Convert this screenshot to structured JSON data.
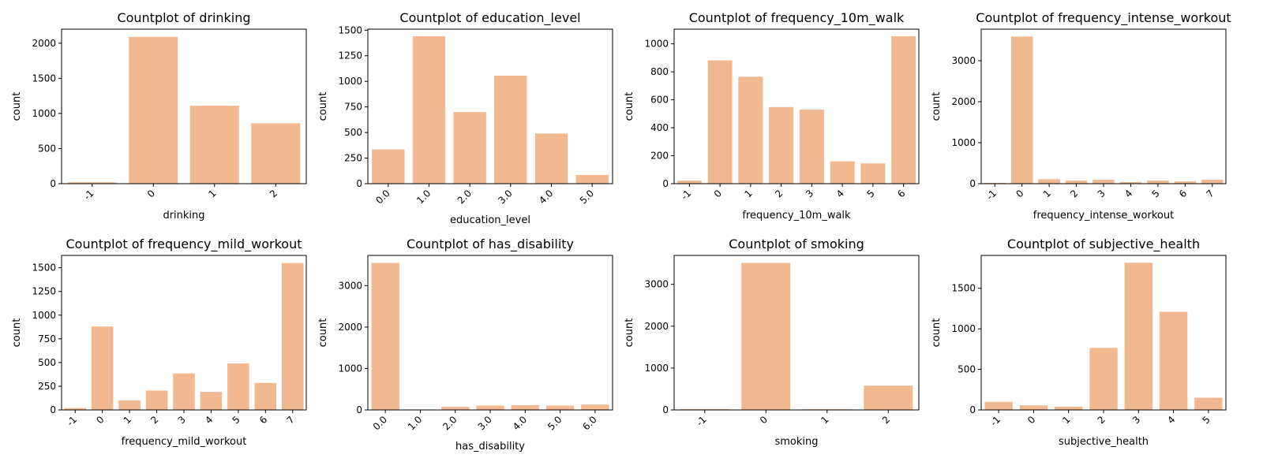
{
  "bar_color": "#f2b88f",
  "chart_data": [
    {
      "type": "bar",
      "title": "Countplot of drinking",
      "xlabel": "drinking",
      "ylabel": "count",
      "categories": [
        "-1",
        "0",
        "1",
        "2"
      ],
      "values": [
        20,
        2090,
        1110,
        860
      ],
      "ylim": [
        0,
        2200
      ],
      "yticks": [
        0,
        500,
        1000,
        1500,
        2000
      ],
      "grid": false,
      "legend": "none"
    },
    {
      "type": "bar",
      "title": "Countplot of education_level",
      "xlabel": "education_level",
      "ylabel": "count",
      "categories": [
        "0.0",
        "1.0",
        "2.0",
        "3.0",
        "4.0",
        "5.0"
      ],
      "values": [
        335,
        1440,
        700,
        1055,
        490,
        85
      ],
      "ylim": [
        0,
        1510
      ],
      "yticks": [
        0,
        250,
        500,
        750,
        1000,
        1250,
        1500
      ],
      "grid": false,
      "legend": "none"
    },
    {
      "type": "bar",
      "title": "Countplot of frequency_10m_walk",
      "xlabel": "frequency_10m_walk",
      "ylabel": "count",
      "categories": [
        "-1",
        "0",
        "1",
        "2",
        "3",
        "4",
        "5",
        "6"
      ],
      "values": [
        22,
        882,
        765,
        548,
        530,
        160,
        145,
        1055
      ],
      "ylim": [
        0,
        1105
      ],
      "yticks": [
        0,
        200,
        400,
        600,
        800,
        1000
      ],
      "grid": false,
      "legend": "none"
    },
    {
      "type": "bar",
      "title": "Countplot of frequency_intense_workout",
      "xlabel": "frequency_intense_workout",
      "ylabel": "count",
      "categories": [
        "-1",
        "0",
        "1",
        "2",
        "3",
        "4",
        "5",
        "6",
        "7"
      ],
      "values": [
        20,
        3590,
        110,
        75,
        95,
        40,
        75,
        55,
        95
      ],
      "ylim": [
        0,
        3770
      ],
      "yticks": [
        0,
        1000,
        2000,
        3000
      ],
      "grid": false,
      "legend": "none"
    },
    {
      "type": "bar",
      "title": "Countplot of frequency_mild_workout",
      "xlabel": "frequency_mild_workout",
      "ylabel": "count",
      "categories": [
        "-1",
        "0",
        "1",
        "2",
        "3",
        "4",
        "5",
        "6",
        "7"
      ],
      "values": [
        20,
        880,
        100,
        205,
        385,
        190,
        490,
        285,
        1550
      ],
      "ylim": [
        0,
        1630
      ],
      "yticks": [
        0,
        250,
        500,
        750,
        1000,
        1250,
        1500
      ],
      "grid": false,
      "legend": "none"
    },
    {
      "type": "bar",
      "title": "Countplot of has_disability",
      "xlabel": "has_disability",
      "ylabel": "count",
      "categories": [
        "0.0",
        "1.0",
        "2.0",
        "3.0",
        "4.0",
        "5.0",
        "6.0"
      ],
      "values": [
        3550,
        10,
        75,
        105,
        115,
        105,
        130
      ],
      "ylim": [
        0,
        3730
      ],
      "yticks": [
        0,
        1000,
        2000,
        3000
      ],
      "grid": false,
      "legend": "none"
    },
    {
      "type": "bar",
      "title": "Countplot of smoking",
      "xlabel": "smoking",
      "ylabel": "count",
      "categories": [
        "-1",
        "0",
        "1",
        "2"
      ],
      "values": [
        20,
        3510,
        15,
        580
      ],
      "ylim": [
        0,
        3690
      ],
      "yticks": [
        0,
        1000,
        2000,
        3000
      ],
      "grid": false,
      "legend": "none"
    },
    {
      "type": "bar",
      "title": "Countplot of subjective_health",
      "xlabel": "subjective_health",
      "ylabel": "count",
      "categories": [
        "-1",
        "0",
        "1",
        "2",
        "3",
        "4",
        "5"
      ],
      "values": [
        100,
        55,
        40,
        765,
        1815,
        1210,
        150
      ],
      "ylim": [
        0,
        1905
      ],
      "yticks": [
        0,
        500,
        1000,
        1500
      ],
      "grid": false,
      "legend": "none"
    }
  ]
}
